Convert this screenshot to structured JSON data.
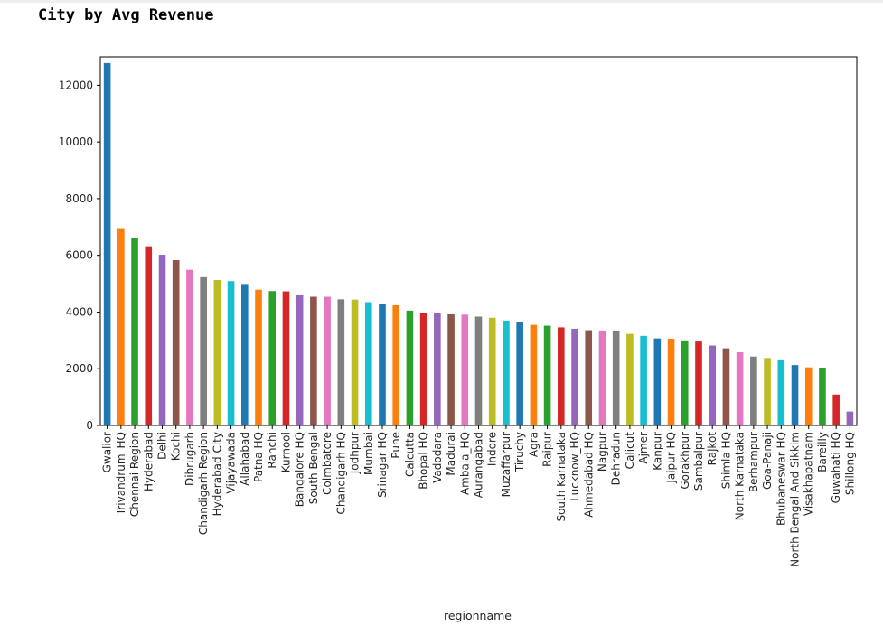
{
  "page": {
    "title": "City by Avg Revenue"
  },
  "chart_data": {
    "type": "bar",
    "title": "",
    "xlabel": "regionname",
    "ylabel": "",
    "ylim": [
      0,
      13000
    ],
    "yticks": [
      0,
      2000,
      4000,
      6000,
      8000,
      10000,
      12000
    ],
    "grid": false,
    "legend": false,
    "palette": [
      "#1f77b4",
      "#ff7f0e",
      "#2ca02c",
      "#d62728",
      "#9467bd",
      "#8c564b",
      "#e377c2",
      "#7f7f7f",
      "#bcbd22",
      "#17becf"
    ],
    "categories": [
      "Gwalior",
      "Trivandrum_HQ",
      "Chennai Region",
      "Hyderabad",
      "Delhi",
      "Kochi",
      "Dibrugarh",
      "Chandigarh Region",
      "Hyderabad City",
      "Vijayawada",
      "Allahabad",
      "Patna HQ",
      "Ranchi",
      "Kurnool",
      "Bangalore HQ",
      "South Bengal",
      "Coimbatore",
      "Chandigarh HQ",
      "Jodhpur",
      "Mumbai",
      "Srinagar HQ",
      "Pune",
      "Calcutta",
      "Bhopal HQ",
      "Vadodara",
      "Madurai",
      "Ambala_HQ",
      "Aurangabad",
      "Indore",
      "Muzaffarpur",
      "Tiruchy",
      "Agra",
      "Raipur",
      "South Karnataka",
      "Lucknow_HQ",
      "Ahmedabad HQ",
      "Nagpur",
      "Dehradun",
      "Calicut",
      "Ajmer",
      "Kanpur",
      "Jaipur HQ",
      "Gorakhpur",
      "Sambalpur",
      "Rajkot",
      "Shimla HQ",
      "North Karnataka",
      "Berhampur",
      "Goa-Panaji",
      "Bhubaneswar HQ",
      "North Bengal And Sikkim",
      "Visakhapatnam",
      "Bareilly",
      "Guwahati HQ",
      "Shillong HQ"
    ],
    "values": [
      12780,
      6960,
      6620,
      6320,
      6020,
      5830,
      5490,
      5230,
      5130,
      5090,
      4990,
      4790,
      4740,
      4730,
      4590,
      4540,
      4540,
      4450,
      4440,
      4350,
      4300,
      4240,
      4050,
      3960,
      3950,
      3920,
      3910,
      3840,
      3800,
      3700,
      3650,
      3550,
      3520,
      3460,
      3410,
      3360,
      3350,
      3350,
      3230,
      3160,
      3070,
      3060,
      3000,
      2960,
      2820,
      2720,
      2580,
      2430,
      2380,
      2330,
      2130,
      2050,
      2040,
      1090,
      490
    ]
  }
}
